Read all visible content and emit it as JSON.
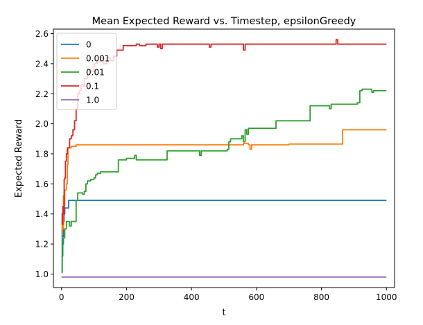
{
  "chart_data": {
    "type": "line",
    "title": "Mean Expected Reward vs. Timestep, epsilonGreedy",
    "xlabel": "t",
    "ylabel": "Expected Reward",
    "xlim": [
      -25,
      1025
    ],
    "ylim": [
      0.91,
      2.63
    ],
    "xticks": [
      0,
      200,
      400,
      600,
      800,
      1000
    ],
    "yticks": [
      1.0,
      1.2,
      1.4,
      1.6,
      1.8,
      2.0,
      2.2,
      2.4,
      2.6
    ],
    "xtick_labels": [
      "0",
      "200",
      "400",
      "600",
      "800",
      "1000"
    ],
    "ytick_labels": [
      "1.0",
      "1.2",
      "1.4",
      "1.6",
      "1.8",
      "2.0",
      "2.2",
      "2.4",
      "2.6"
    ],
    "grid": false,
    "legend_position": "top-left",
    "series": [
      {
        "name": "0",
        "color": "#1f77b4",
        "points": [
          [
            0,
            1.02
          ],
          [
            2,
            1.3
          ],
          [
            4,
            1.25
          ],
          [
            6,
            1.35
          ],
          [
            8,
            1.4
          ],
          [
            10,
            1.44
          ],
          [
            15,
            1.44
          ],
          [
            20,
            1.44
          ],
          [
            22,
            1.49
          ],
          [
            30,
            1.49
          ],
          [
            100,
            1.49
          ],
          [
            400,
            1.49
          ],
          [
            800,
            1.49
          ],
          [
            1000,
            1.49
          ]
        ]
      },
      {
        "name": "0.001",
        "color": "#ff7f0e",
        "points": [
          [
            0,
            1.26
          ],
          [
            2,
            1.36
          ],
          [
            4,
            1.3
          ],
          [
            6,
            1.52
          ],
          [
            8,
            1.45
          ],
          [
            10,
            1.56
          ],
          [
            15,
            1.6
          ],
          [
            18,
            1.73
          ],
          [
            20,
            1.84
          ],
          [
            25,
            1.84
          ],
          [
            30,
            1.85
          ],
          [
            40,
            1.85
          ],
          [
            45,
            1.86
          ],
          [
            100,
            1.86
          ],
          [
            200,
            1.86
          ],
          [
            500,
            1.86
          ],
          [
            550,
            1.86
          ],
          [
            560,
            1.87
          ],
          [
            575,
            1.86
          ],
          [
            580,
            1.83
          ],
          [
            585,
            1.86
          ],
          [
            700,
            1.865
          ],
          [
            860,
            1.865
          ],
          [
            865,
            1.96
          ],
          [
            1000,
            1.96
          ]
        ]
      },
      {
        "name": "0.01",
        "color": "#2ca02c",
        "points": [
          [
            0,
            1.01
          ],
          [
            2,
            1.12
          ],
          [
            4,
            1.2
          ],
          [
            6,
            1.24
          ],
          [
            8,
            1.24
          ],
          [
            10,
            1.3
          ],
          [
            15,
            1.35
          ],
          [
            20,
            1.35
          ],
          [
            25,
            1.32
          ],
          [
            30,
            1.35
          ],
          [
            40,
            1.35
          ],
          [
            45,
            1.49
          ],
          [
            50,
            1.54
          ],
          [
            60,
            1.54
          ],
          [
            65,
            1.53
          ],
          [
            70,
            1.55
          ],
          [
            75,
            1.6
          ],
          [
            80,
            1.62
          ],
          [
            90,
            1.63
          ],
          [
            100,
            1.64
          ],
          [
            105,
            1.66
          ],
          [
            110,
            1.67
          ],
          [
            120,
            1.68
          ],
          [
            140,
            1.68
          ],
          [
            170,
            1.68
          ],
          [
            175,
            1.76
          ],
          [
            200,
            1.77
          ],
          [
            220,
            1.77
          ],
          [
            225,
            1.79
          ],
          [
            230,
            1.76
          ],
          [
            320,
            1.76
          ],
          [
            325,
            1.82
          ],
          [
            420,
            1.82
          ],
          [
            425,
            1.79
          ],
          [
            430,
            1.82
          ],
          [
            500,
            1.82
          ],
          [
            510,
            1.83
          ],
          [
            515,
            1.88
          ],
          [
            520,
            1.9
          ],
          [
            550,
            1.9
          ],
          [
            555,
            1.92
          ],
          [
            560,
            1.88
          ],
          [
            565,
            1.96
          ],
          [
            570,
            1.93
          ],
          [
            575,
            1.97
          ],
          [
            655,
            1.97
          ],
          [
            660,
            2.02
          ],
          [
            760,
            2.02
          ],
          [
            765,
            2.12
          ],
          [
            820,
            2.12
          ],
          [
            825,
            2.1
          ],
          [
            830,
            2.13
          ],
          [
            905,
            2.13
          ],
          [
            910,
            2.14
          ],
          [
            918,
            2.22
          ],
          [
            925,
            2.23
          ],
          [
            950,
            2.23
          ],
          [
            955,
            2.21
          ],
          [
            960,
            2.22
          ],
          [
            1000,
            2.22
          ]
        ]
      },
      {
        "name": "0.1",
        "color": "#d62728",
        "points": [
          [
            0,
            1.4
          ],
          [
            2,
            1.33
          ],
          [
            4,
            1.45
          ],
          [
            6,
            1.4
          ],
          [
            8,
            1.63
          ],
          [
            10,
            1.64
          ],
          [
            12,
            1.75
          ],
          [
            15,
            1.8
          ],
          [
            18,
            1.84
          ],
          [
            22,
            1.84
          ],
          [
            25,
            1.9
          ],
          [
            30,
            1.92
          ],
          [
            35,
            1.96
          ],
          [
            40,
            2.02
          ],
          [
            45,
            2.1
          ],
          [
            50,
            2.2
          ],
          [
            55,
            2.22
          ],
          [
            60,
            2.26
          ],
          [
            65,
            2.25
          ],
          [
            70,
            2.3
          ],
          [
            80,
            2.36
          ],
          [
            90,
            2.35
          ],
          [
            100,
            2.4
          ],
          [
            110,
            2.41
          ],
          [
            120,
            2.44
          ],
          [
            130,
            2.4
          ],
          [
            140,
            2.44
          ],
          [
            150,
            2.42
          ],
          [
            160,
            2.45
          ],
          [
            170,
            2.49
          ],
          [
            180,
            2.49
          ],
          [
            190,
            2.52
          ],
          [
            220,
            2.52
          ],
          [
            230,
            2.53
          ],
          [
            240,
            2.52
          ],
          [
            260,
            2.53
          ],
          [
            290,
            2.53
          ],
          [
            295,
            2.51
          ],
          [
            300,
            2.53
          ],
          [
            305,
            2.5
          ],
          [
            310,
            2.53
          ],
          [
            400,
            2.53
          ],
          [
            450,
            2.53
          ],
          [
            455,
            2.51
          ],
          [
            460,
            2.53
          ],
          [
            555,
            2.53
          ],
          [
            560,
            2.49
          ],
          [
            565,
            2.53
          ],
          [
            750,
            2.53
          ],
          [
            840,
            2.53
          ],
          [
            845,
            2.56
          ],
          [
            850,
            2.53
          ],
          [
            1000,
            2.53
          ]
        ]
      },
      {
        "name": "1.0",
        "color": "#9467bd",
        "points": [
          [
            0,
            0.98
          ],
          [
            1000,
            0.98
          ]
        ]
      }
    ]
  }
}
